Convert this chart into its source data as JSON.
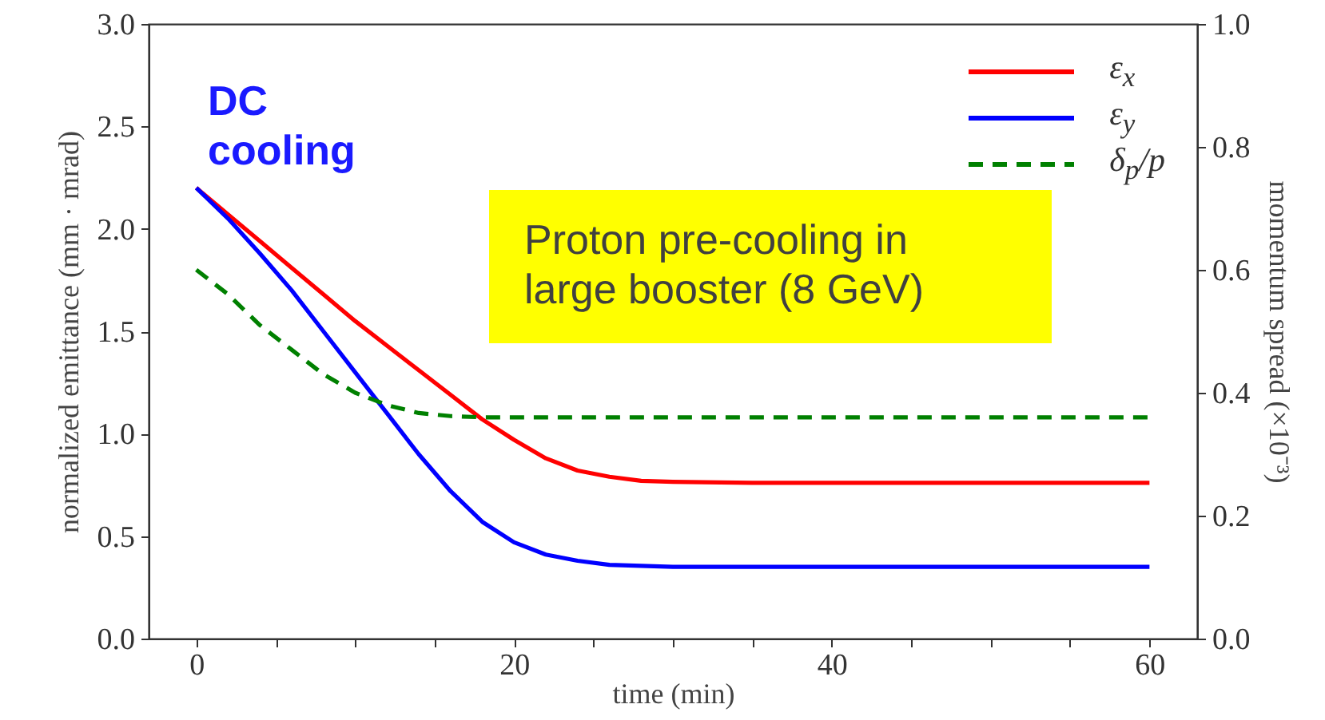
{
  "chart_data": {
    "type": "line",
    "xlabel": "time (min)",
    "ylabel": "normalized emittance (mm · mrad)",
    "y2label": "momentum spread (×10⁻³)",
    "xlim": [
      -3,
      63
    ],
    "xticks": [
      0,
      {
        "value": 5,
        "label": null
      },
      {
        "value": 10,
        "label": null
      },
      {
        "value": 15,
        "label": null
      },
      20,
      {
        "value": 25,
        "label": null
      },
      {
        "value": 30,
        "label": null
      },
      {
        "value": 35,
        "label": null
      },
      40,
      {
        "value": 45,
        "label": null
      },
      {
        "value": 50,
        "label": null
      },
      {
        "value": 55,
        "label": null
      },
      60
    ],
    "ylim": [
      0,
      3
    ],
    "yticks": [
      {
        "value": 0,
        "label": "0.0"
      },
      0.5,
      {
        "value": 1,
        "label": "1.0"
      },
      1.5,
      {
        "value": 2,
        "label": "2.0"
      },
      2.5,
      {
        "value": 3,
        "label": "3.0"
      }
    ],
    "y2lim": [
      0,
      1
    ],
    "y2ticks": [
      {
        "value": 0,
        "label": "0.0"
      },
      0.2,
      0.4,
      0.6,
      0.8,
      {
        "value": 1,
        "label": "1.0"
      }
    ],
    "x": [
      0,
      2,
      4,
      6,
      8,
      10,
      12,
      14,
      16,
      18,
      20,
      22,
      24,
      26,
      28,
      30,
      35,
      40,
      50,
      60
    ],
    "series": [
      {
        "name": "ε$_{x}$",
        "color": "#ff0000",
        "values": [
          2.2,
          2.07,
          1.94,
          1.81,
          1.68,
          1.55,
          1.43,
          1.31,
          1.19,
          1.07,
          0.97,
          0.88,
          0.82,
          0.79,
          0.77,
          0.765,
          0.76,
          0.76,
          0.76,
          0.76
        ]
      },
      {
        "name": "ε$_{y}$",
        "color": "#0000ff",
        "values": [
          2.2,
          2.05,
          1.88,
          1.7,
          1.5,
          1.3,
          1.1,
          0.9,
          0.72,
          0.57,
          0.47,
          0.41,
          0.38,
          0.36,
          0.355,
          0.35,
          0.35,
          0.35,
          0.35,
          0.35
        ]
      },
      {
        "name": "δ$_{p}$/p",
        "color": "#008000",
        "axis": "y2",
        "line_style": "dashed",
        "values": [
          0.6,
          0.56,
          0.51,
          0.47,
          0.43,
          0.4,
          0.38,
          0.367,
          0.362,
          0.36,
          0.36,
          0.36,
          0.36,
          0.36,
          0.36,
          0.36,
          0.36,
          0.36,
          0.36,
          0.36
        ]
      }
    ],
    "legend": "top right",
    "grid": false,
    "annotations": [
      "DC\ncooling",
      "Proton pre-cooling in\nlarge booster (8 GeV)"
    ]
  }
}
